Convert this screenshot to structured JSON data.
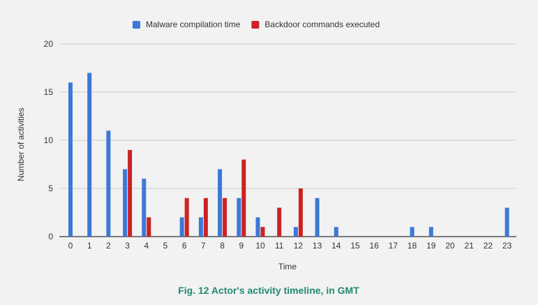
{
  "caption": "Fig. 12 Actor's activity timeline, in GMT",
  "colors": {
    "background": "#f2f2f2",
    "gridline": "#cccccc",
    "baseline": "#333333",
    "caption": "#1f8a70"
  },
  "chart_data": {
    "type": "bar",
    "title": "",
    "xlabel": "Time",
    "ylabel": "Number of activities",
    "ylim": [
      0,
      20
    ],
    "yticks": [
      "0",
      "5",
      "10",
      "15",
      "20"
    ],
    "grid": true,
    "legend_position": "top",
    "categories": [
      "0",
      "1",
      "2",
      "3",
      "4",
      "5",
      "6",
      "7",
      "8",
      "9",
      "10",
      "11",
      "12",
      "13",
      "14",
      "15",
      "16",
      "17",
      "18",
      "19",
      "20",
      "21",
      "22",
      "23"
    ],
    "series": [
      {
        "name": "Malware compilation time",
        "color": "#3c78d8",
        "values": [
          16,
          17,
          11,
          7,
          6,
          0,
          2,
          2,
          7,
          4,
          2,
          0,
          1,
          4,
          1,
          0,
          0,
          0,
          1,
          1,
          0,
          0,
          0,
          3
        ]
      },
      {
        "name": "Backdoor commands executed",
        "color": "#cc2222",
        "values": [
          0,
          0,
          0,
          9,
          2,
          0,
          4,
          4,
          4,
          8,
          1,
          3,
          5,
          0,
          0,
          0,
          0,
          0,
          0,
          0,
          0,
          0,
          0,
          0
        ]
      }
    ]
  }
}
